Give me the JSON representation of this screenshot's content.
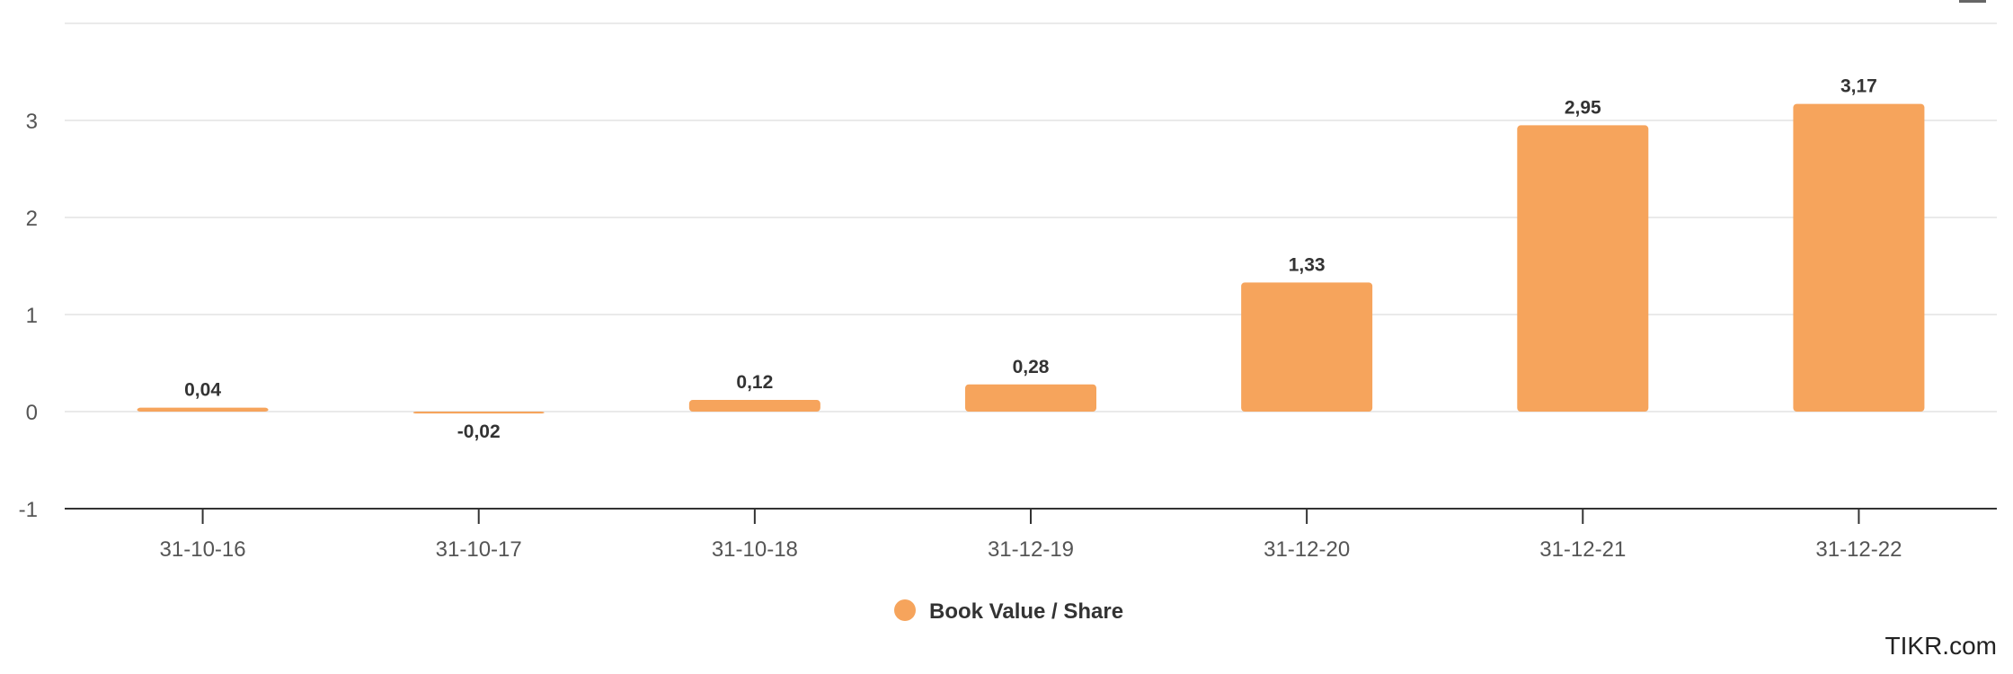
{
  "chart_data": {
    "type": "bar",
    "categories": [
      "31-10-16",
      "31-10-17",
      "31-10-18",
      "31-12-19",
      "31-12-20",
      "31-12-21",
      "31-12-22"
    ],
    "series": [
      {
        "name": "Book Value / Share",
        "values": [
          0.04,
          -0.02,
          0.12,
          0.28,
          1.33,
          2.95,
          3.17
        ],
        "color": "#f6a45c"
      }
    ],
    "data_labels": [
      "0,04",
      "-0,02",
      "0,12",
      "0,28",
      "1,33",
      "2,95",
      "3,17"
    ],
    "y_ticks": [
      -1,
      0,
      1,
      2,
      3
    ],
    "ylim": [
      -1,
      4
    ],
    "title": "",
    "xlabel": "",
    "ylabel": "",
    "grid": true,
    "legend": "bottom-center"
  },
  "credit": "TIKR.com"
}
